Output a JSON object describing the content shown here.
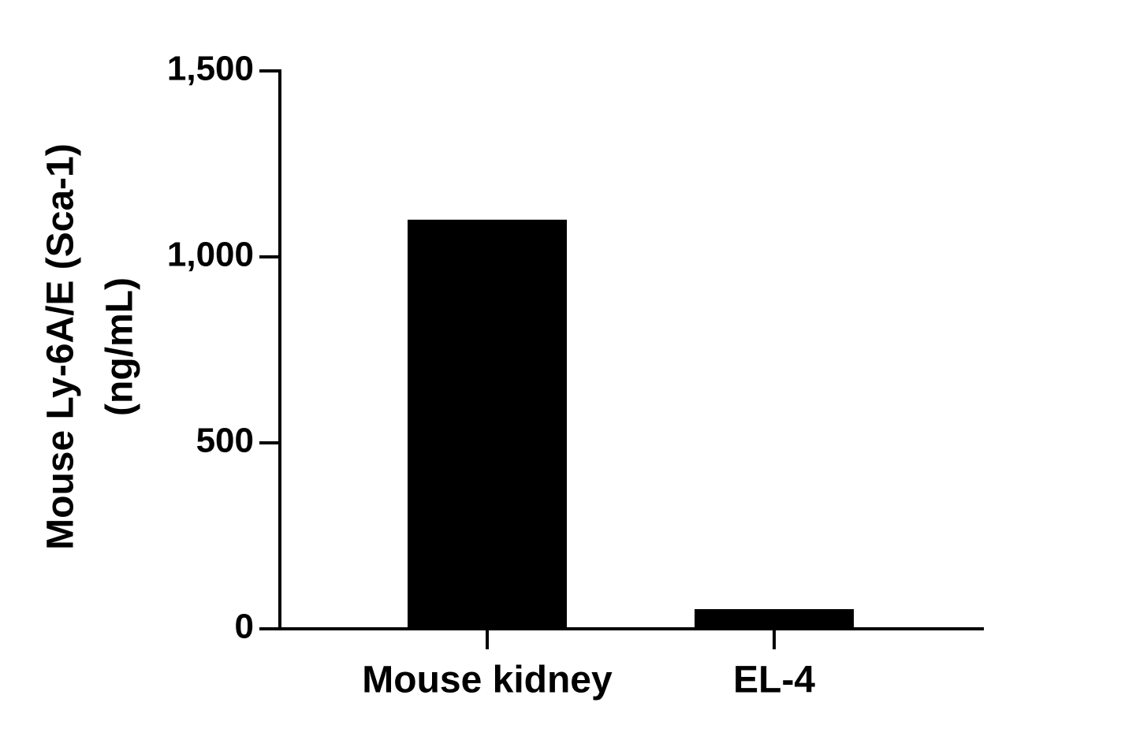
{
  "chart_data": {
    "type": "bar",
    "ylabel": [
      "Mouse Ly-6A/E (Sca-1)",
      "(ng/mL)"
    ],
    "categories": [
      "Mouse kidney",
      "EL-4"
    ],
    "values": [
      1100,
      53
    ],
    "color": "#000000",
    "ylim": [
      0,
      1500
    ],
    "yticks": [
      0,
      500,
      {
        "value": 1000,
        "label": "1,000"
      },
      {
        "value": 1500,
        "label": "1,500"
      }
    ]
  }
}
